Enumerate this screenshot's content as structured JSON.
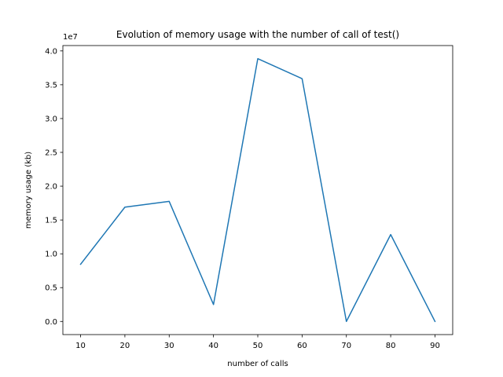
{
  "chart_data": {
    "type": "line",
    "title": "Evolution of memory usage with the number of call of test()",
    "xlabel": "number of calls",
    "ylabel": "memory usage (kb)",
    "y_offset_text": "1e7",
    "x": [
      10,
      20,
      30,
      40,
      50,
      60,
      70,
      80,
      90
    ],
    "series": [
      {
        "values": [
          0.845,
          1.69,
          1.775,
          0.25,
          3.885,
          3.59,
          0.0,
          1.285,
          0.0
        ],
        "color": "#1f77b4"
      }
    ],
    "xlim": [
      6,
      94
    ],
    "ylim": [
      -0.19425,
      4.07925
    ],
    "xticks": [
      10,
      20,
      30,
      40,
      50,
      60,
      70,
      80,
      90
    ],
    "yticks": [
      0.0,
      0.5,
      1.0,
      1.5,
      2.0,
      2.5,
      3.0,
      3.5,
      4.0
    ],
    "ytick_labels": [
      "0.0",
      "0.5",
      "1.0",
      "1.5",
      "2.0",
      "2.5",
      "3.0",
      "3.5",
      "4.0"
    ],
    "grid": false,
    "legend": "none"
  }
}
